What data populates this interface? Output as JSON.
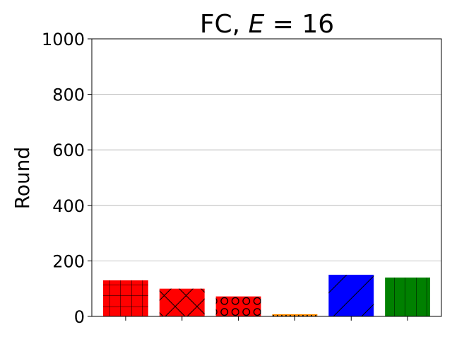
{
  "chart_data": {
    "type": "bar",
    "title": "FC, E = 16",
    "title_prefix": "FC, ",
    "title_var": "E",
    "title_suffix": " = 16",
    "xlabel": "",
    "ylabel": "Round",
    "ylim": [
      0,
      1000
    ],
    "yticks": [
      "0",
      "200",
      "400",
      "600",
      "800",
      "1000"
    ],
    "grid": "y",
    "bars": [
      {
        "value": 130,
        "color": "#ff0000",
        "hatch": "grid"
      },
      {
        "value": 100,
        "color": "#ff0000",
        "hatch": "cross-diagonal"
      },
      {
        "value": 72,
        "color": "#ff0000",
        "hatch": "circles"
      },
      {
        "value": 8,
        "color": "#ff8c00",
        "hatch": "dots"
      },
      {
        "value": 150,
        "color": "#0000ff",
        "hatch": "diagonal"
      },
      {
        "value": 140,
        "color": "#008000",
        "hatch": "vertical"
      }
    ]
  }
}
